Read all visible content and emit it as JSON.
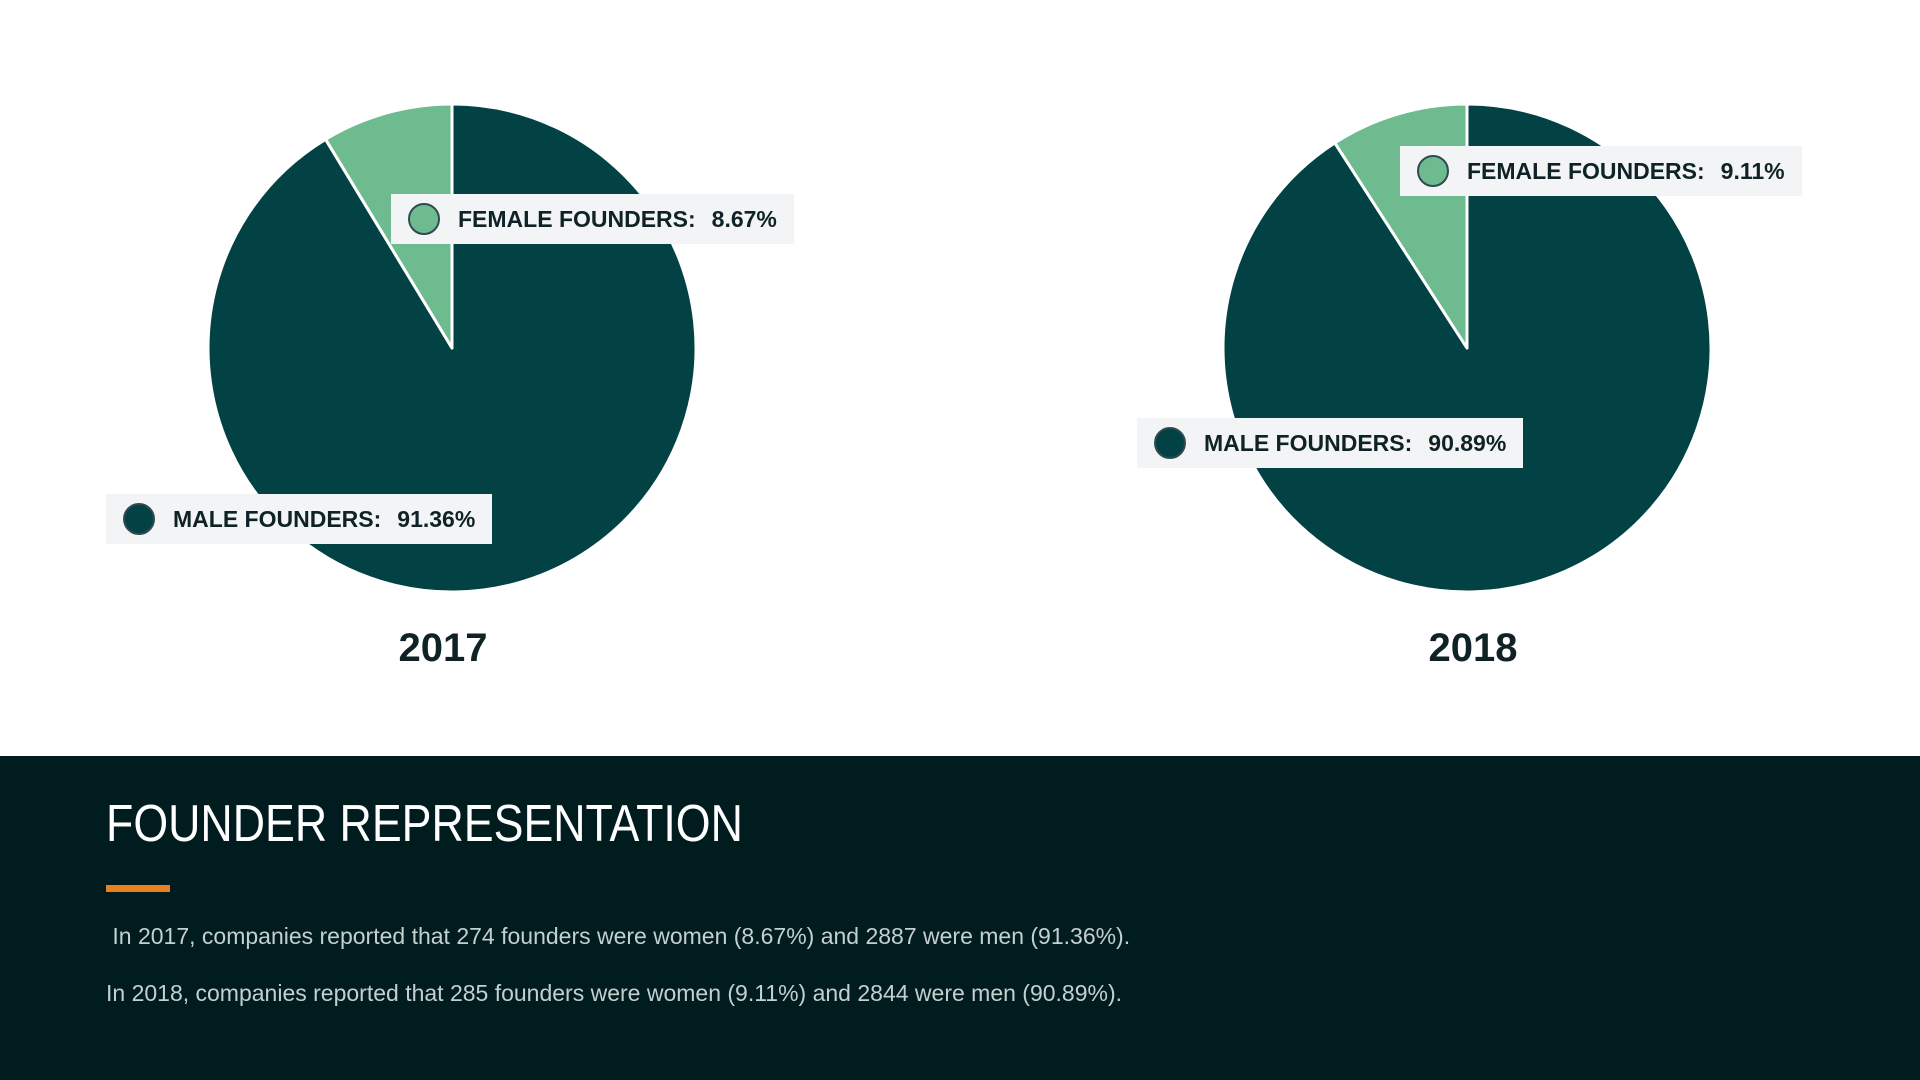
{
  "colors": {
    "male": "#024244",
    "female": "#6dbb8f",
    "callout_bg": "#f3f4f6",
    "footer_bg": "#011c1e",
    "accent": "#e8801e"
  },
  "chart_data": [
    {
      "type": "pie",
      "title": "2017",
      "slices": [
        {
          "label": "FEMALE FOUNDERS:",
          "value": 8.67,
          "value_text": "8.67%"
        },
        {
          "label": "MALE FOUNDERS:",
          "value": 91.36,
          "value_text": "91.36%"
        }
      ]
    },
    {
      "type": "pie",
      "title": "2018",
      "slices": [
        {
          "label": "FEMALE FOUNDERS:",
          "value": 9.11,
          "value_text": "9.11%"
        },
        {
          "label": "MALE FOUNDERS:",
          "value": 90.89,
          "value_text": "90.89%"
        }
      ]
    }
  ],
  "footer": {
    "title": "FOUNDER REPRESENTATION",
    "lines": [
      " In 2017, companies reported that 274 founders were women (8.67%) and 2887 were men (91.36%).",
      "In 2018, companies reported that 285 founders were women (9.11%) and 2844 were men (90.89%)."
    ]
  }
}
